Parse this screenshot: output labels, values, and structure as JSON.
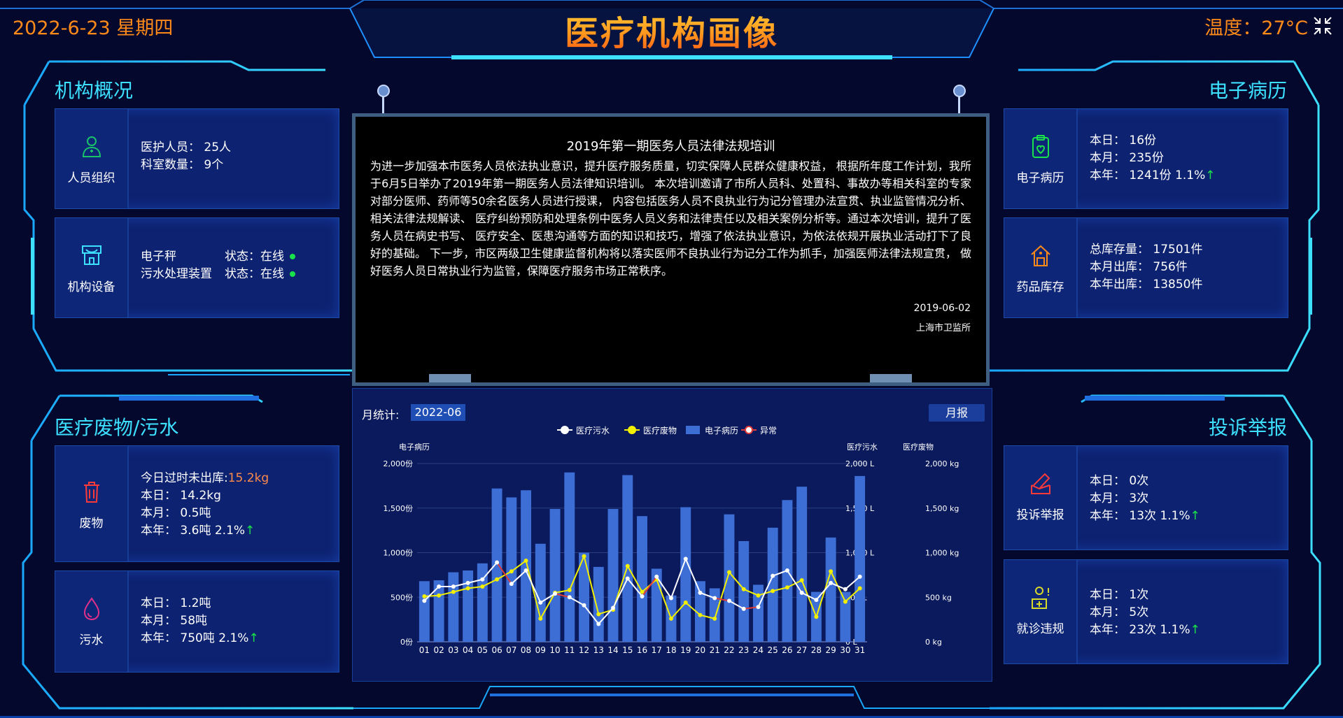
{
  "header": {
    "date": "2022-6-23 星期四",
    "title": "医疗机构画像",
    "temperature": "温度：27°C"
  },
  "org_overview": {
    "title": "机构概况",
    "staff": {
      "label": "人员组织",
      "line1": "医护人员：  25人",
      "line2": "科室数量：  9个"
    },
    "equipment": {
      "label": "机构设备",
      "items": [
        {
          "name": "电子秤",
          "status": "状态：在线"
        },
        {
          "name": "污水处理装置",
          "status": "状态：在线"
        }
      ]
    }
  },
  "waste": {
    "title": "医疗废物/污水",
    "solid": {
      "label": "废物",
      "overdue_label": "今日过时未出库:",
      "overdue_value": "15.2kg",
      "day": "本日：  14.2kg",
      "month": "本月：  0.5吨",
      "year": "本年：  3.6吨    2.1%",
      "arrow": "↑"
    },
    "water": {
      "label": "污水",
      "day": "本日：  1.2吨",
      "month": "本月：  58吨",
      "year": "本年：  750吨    2.1%",
      "arrow": "↑"
    }
  },
  "emr": {
    "title": "电子病历",
    "records": {
      "label": "电子病历",
      "day": "本日：  16份",
      "month": "本月：  235份",
      "year": "本年：  1241份    1.1%",
      "arrow": "↑"
    },
    "drugs": {
      "label": "药品库存",
      "total": "总库存量：  17501件",
      "month": "本月出库：  756件",
      "year": "本年出库：  13850件"
    }
  },
  "complaints": {
    "title": "投诉举报",
    "report": {
      "label": "投诉举报",
      "day": "本日：  0次",
      "month": "本月：  3次",
      "year": "本年：  13次    1.1%",
      "arrow": "↑"
    },
    "violation": {
      "label": "就诊违规",
      "day": "本日：  1次",
      "month": "本月：  5次",
      "year": "本年：  23次    1.1%",
      "arrow": "↑"
    }
  },
  "notice": {
    "title": "2019年第一期医务人员法律法规培训",
    "body": "为进一步加强本市医务人员依法执业意识，提升医疗服务质量，切实保障人民群众健康权益， 根据所年度工作计划，我所于6月5日举办了2019年第一期医务人员法律知识培训。 本次培训邀请了市所人员科、处置科、事故办等相关科室的专家对部分医师、药师等50余名医务人员进行授课， 内容包括医务人员不良执业行为记分管理办法宣贯、执业监管情况分析、相关法律法规解读、 医疗纠纷预防和处理条例中医务人员义务和法律责任以及相关案例分析等。通过本次培训，提升了医务人员在病史书写、 医疗安全、医患沟通等方面的知识和技巧，增强了依法执业意识，为依法依规开展执业活动打下了良好的基础。 下一步，市区两级卫生健康监督机构将以落实医师不良执业行为记分工作为抓手，加强医师法律法规宣贯， 做好医务人员日常执业行为监管，保障医疗服务市场正常秩序。",
    "date": "2019-06-02",
    "org": "上海市卫监所"
  },
  "monthly": {
    "label": "月统计:",
    "month": "2022-06",
    "report_button": "月报"
  },
  "chart_data": {
    "type": "bar",
    "categories": [
      "01",
      "02",
      "03",
      "04",
      "05",
      "06",
      "07",
      "08",
      "09",
      "10",
      "11",
      "12",
      "13",
      "14",
      "15",
      "16",
      "17",
      "18",
      "19",
      "20",
      "21",
      "22",
      "23",
      "24",
      "25",
      "26",
      "27",
      "28",
      "29",
      "30",
      "31"
    ],
    "legend": [
      "医疗污水",
      "医疗废物",
      "电子病历",
      "异常"
    ],
    "axes": {
      "left": {
        "title": "电子病历",
        "ticks": [
          "2,000份",
          "1,500份",
          "1,000份",
          "500份",
          "0份"
        ],
        "ylim": [
          0,
          2000
        ]
      },
      "right1": {
        "title": "医疗污水",
        "ticks": [
          "2,000 L",
          "1,500 L",
          "1,000 L",
          "500 L",
          "0 L"
        ],
        "ylim": [
          0,
          2000
        ]
      },
      "right2": {
        "title": "医疗废物",
        "ticks": [
          "2,000 kg",
          "1,500 kg",
          "1,000 kg",
          "500 kg",
          "0 kg"
        ],
        "ylim": [
          0,
          2000
        ]
      }
    },
    "series": [
      {
        "name": "电子病历",
        "type": "bar",
        "color": "#3c6ed6",
        "values": [
          680,
          690,
          780,
          800,
          880,
          1720,
          1620,
          1700,
          1100,
          1490,
          1900,
          1000,
          840,
          1490,
          1870,
          1410,
          820,
          520,
          1510,
          680,
          600,
          1430,
          1130,
          640,
          1280,
          1590,
          1740,
          560,
          1170,
          560,
          1860
        ]
      },
      {
        "name": "医疗污水",
        "type": "line",
        "color": "#ffffff",
        "values": [
          460,
          620,
          620,
          660,
          700,
          890,
          650,
          800,
          440,
          540,
          500,
          410,
          200,
          380,
          710,
          510,
          730,
          490,
          930,
          550,
          490,
          460,
          370,
          390,
          740,
          800,
          550,
          470,
          660,
          590,
          730
        ]
      },
      {
        "name": "医疗废物",
        "type": "line",
        "color": "#f2f000",
        "values": [
          510,
          520,
          560,
          600,
          620,
          700,
          790,
          910,
          260,
          550,
          580,
          960,
          310,
          360,
          850,
          560,
          700,
          260,
          440,
          300,
          260,
          780,
          590,
          520,
          570,
          610,
          690,
          280,
          790,
          450,
          600
        ]
      }
    ],
    "anomaly_color": "#e03a3a",
    "anomaly_segments": [
      [
        5,
        6
      ],
      [
        9,
        10
      ],
      [
        15,
        16
      ],
      [
        20,
        21
      ],
      [
        22,
        23
      ]
    ]
  },
  "colors": {
    "accent": "#3de0ff",
    "orange": "#ff8a1a",
    "background": "#03082c",
    "card": "#0d2270"
  }
}
